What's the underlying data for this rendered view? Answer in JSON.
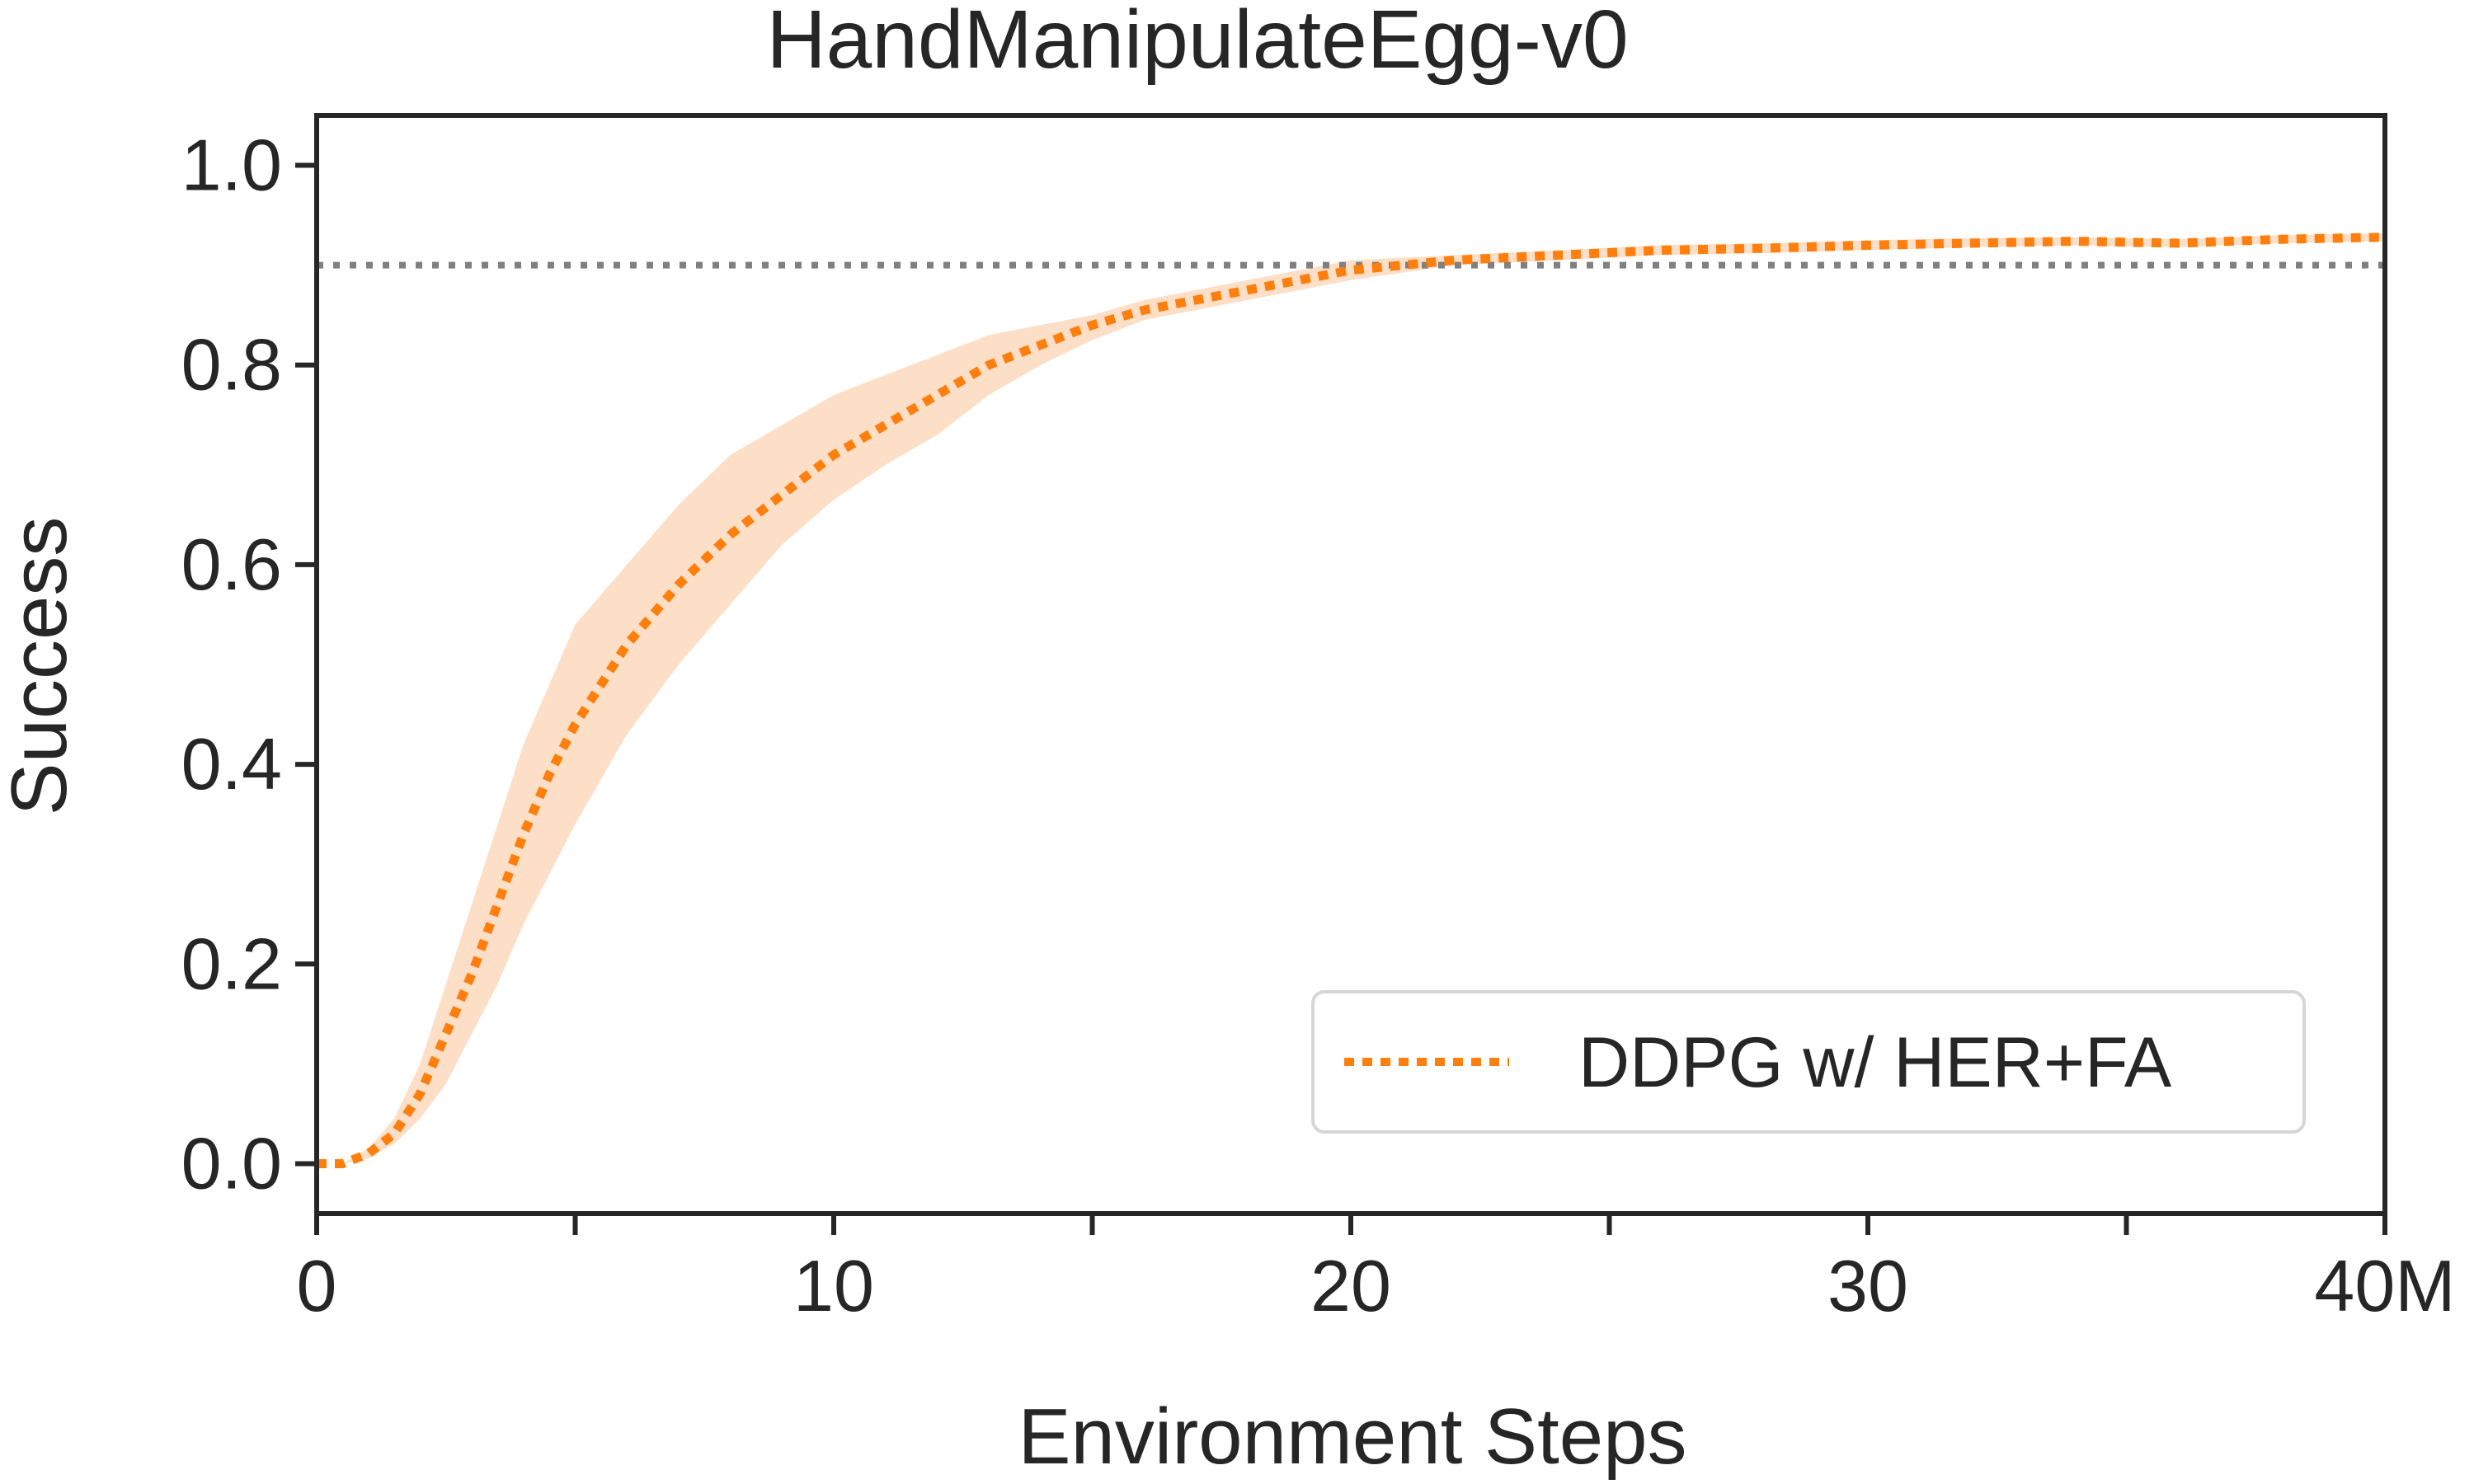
{
  "chart_data": {
    "type": "line",
    "title": "HandManipulateEgg-v0",
    "xlabel": "Environment Steps",
    "ylabel": "Success",
    "xlim": [
      0,
      40
    ],
    "ylim": [
      -0.05,
      1.05
    ],
    "x_ticks": [
      0,
      10,
      20,
      30,
      40
    ],
    "x_minor_ticks": [
      5,
      15,
      25,
      35
    ],
    "x_tick_labels": [
      "0",
      "10",
      "20",
      "30",
      "40M"
    ],
    "y_ticks": [
      0.0,
      0.2,
      0.4,
      0.6,
      0.8,
      1.0
    ],
    "y_tick_labels": [
      "0.0",
      "0.2",
      "0.4",
      "0.6",
      "0.8",
      "1.0"
    ],
    "grid": false,
    "legend_position": "lower-right",
    "reference_line": {
      "y": 0.9,
      "color": "#808080",
      "style": "dotted"
    },
    "series": [
      {
        "name": "DDPG w/ HER+FA",
        "color": "#ff7f0e",
        "band_color": "#fdd9bd",
        "line_style": "dotted",
        "x": [
          0,
          0.5,
          1,
          1.5,
          2,
          2.5,
          3,
          3.5,
          4,
          4.5,
          5,
          6,
          7,
          8,
          9,
          10,
          11,
          12,
          13,
          14,
          15,
          16,
          17,
          18,
          19,
          20,
          22,
          24,
          26,
          28,
          30,
          32,
          34,
          36,
          38,
          40
        ],
        "y": [
          0.0,
          0.0,
          0.01,
          0.03,
          0.07,
          0.13,
          0.19,
          0.26,
          0.33,
          0.39,
          0.44,
          0.52,
          0.58,
          0.63,
          0.67,
          0.71,
          0.74,
          0.77,
          0.8,
          0.82,
          0.84,
          0.855,
          0.865,
          0.875,
          0.885,
          0.895,
          0.905,
          0.91,
          0.915,
          0.917,
          0.92,
          0.922,
          0.924,
          0.922,
          0.926,
          0.928
        ],
        "lower": [
          0.0,
          0.0,
          0.005,
          0.02,
          0.045,
          0.08,
          0.13,
          0.18,
          0.24,
          0.29,
          0.34,
          0.43,
          0.5,
          0.56,
          0.62,
          0.665,
          0.7,
          0.73,
          0.77,
          0.8,
          0.825,
          0.845,
          0.855,
          0.865,
          0.875,
          0.885,
          0.9,
          0.905,
          0.91,
          0.912,
          0.915,
          0.918,
          0.92,
          0.918,
          0.922,
          0.924
        ],
        "upper": [
          0.0,
          0.0,
          0.015,
          0.045,
          0.1,
          0.18,
          0.26,
          0.34,
          0.42,
          0.48,
          0.54,
          0.6,
          0.66,
          0.71,
          0.74,
          0.77,
          0.79,
          0.81,
          0.83,
          0.84,
          0.85,
          0.865,
          0.875,
          0.885,
          0.895,
          0.905,
          0.91,
          0.915,
          0.92,
          0.922,
          0.925,
          0.927,
          0.928,
          0.926,
          0.93,
          0.932
        ]
      }
    ]
  }
}
